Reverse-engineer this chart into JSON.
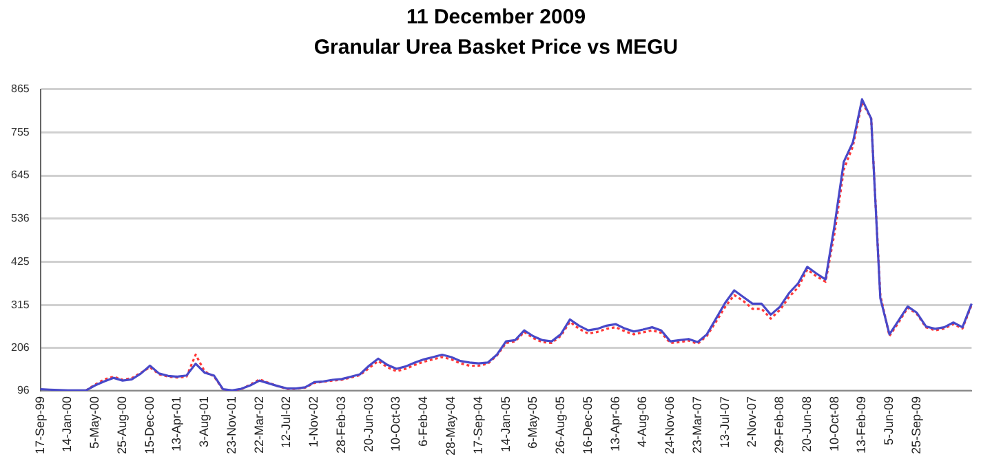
{
  "chart_data": {
    "type": "line",
    "title": "11 December 2009",
    "subtitle": "Granular Urea Basket Price vs MEGU",
    "categories": [
      "17-Sep-99",
      null,
      null,
      "14-Jan-00",
      null,
      null,
      "5-May-00",
      null,
      null,
      "25-Aug-00",
      null,
      null,
      "15-Dec-00",
      null,
      null,
      "13-Apr-01",
      null,
      null,
      "3-Aug-01",
      null,
      null,
      "23-Nov-01",
      null,
      null,
      "22-Mar-02",
      null,
      null,
      "12-Jul-02",
      null,
      null,
      "1-Nov-02",
      null,
      null,
      "28-Feb-03",
      null,
      null,
      "20-Jun-03",
      null,
      null,
      "10-Oct-03",
      null,
      null,
      "6-Feb-04",
      null,
      null,
      "28-May-04",
      null,
      null,
      "17-Sep-04",
      null,
      null,
      "14-Jan-05",
      null,
      null,
      "6-May-05",
      null,
      null,
      "26-Aug-05",
      null,
      null,
      "16-Dec-05",
      null,
      null,
      "13-Apr-06",
      null,
      null,
      "4-Aug-06",
      null,
      null,
      "24-Nov-06",
      null,
      null,
      "23-Mar-07",
      null,
      null,
      "13-Jul-07",
      null,
      null,
      "2-Nov-07",
      null,
      null,
      "29-Feb-08",
      null,
      null,
      "20-Jun-08",
      null,
      null,
      "10-Oct-08",
      null,
      null,
      "13-Feb-09",
      null,
      null,
      "5-Jun-09",
      null,
      null,
      "25-Sep-09",
      null,
      null,
      null,
      null,
      null,
      null
    ],
    "series": [
      {
        "color": "#4848c8",
        "line_style": "solid",
        "values": [
          100,
          99,
          98,
          97,
          97,
          97,
          110,
          120,
          129,
          122,
          125,
          140,
          160,
          140,
          134,
          132,
          135,
          165,
          142,
          135,
          100,
          97,
          101,
          110,
          122,
          115,
          108,
          102,
          102,
          105,
          118,
          120,
          124,
          126,
          132,
          138,
          160,
          178,
          162,
          152,
          158,
          168,
          176,
          182,
          188,
          182,
          172,
          168,
          166,
          168,
          188,
          222,
          225,
          250,
          235,
          225,
          222,
          240,
          278,
          262,
          250,
          254,
          262,
          266,
          255,
          247,
          252,
          258,
          250,
          222,
          225,
          228,
          220,
          240,
          280,
          320,
          352,
          335,
          318,
          318,
          290,
          310,
          345,
          370,
          412,
          395,
          380,
          520,
          680,
          730,
          839,
          790,
          332,
          240,
          275,
          311,
          295,
          260,
          254,
          258,
          270,
          258,
          318
        ]
      },
      {
        "color": "#ff3838",
        "line_style": "dotted",
        "values": [
          null,
          null,
          null,
          null,
          null,
          97,
          112,
          125,
          132,
          124,
          128,
          142,
          156,
          138,
          132,
          130,
          132,
          188,
          145,
          133,
          99,
          96,
          100,
          112,
          125,
          116,
          108,
          101,
          101,
          104,
          116,
          119,
          122,
          124,
          130,
          136,
          154,
          172,
          156,
          146,
          152,
          162,
          170,
          176,
          182,
          176,
          166,
          160,
          160,
          165,
          186,
          218,
          222,
          246,
          230,
          220,
          218,
          236,
          272,
          254,
          242,
          246,
          254,
          258,
          248,
          240,
          245,
          250,
          244,
          218,
          220,
          224,
          216,
          236,
          272,
          310,
          340,
          325,
          305,
          305,
          280,
          302,
          335,
          360,
          405,
          388,
          374,
          500,
          660,
          720,
          832,
          790,
          340,
          236,
          270,
          308,
          292,
          258,
          250,
          255,
          266,
          255,
          315
        ]
      }
    ],
    "ylim": [
      96,
      865
    ],
    "yticks": [
      96,
      206,
      315,
      425,
      536,
      645,
      755,
      865
    ],
    "grid": "y",
    "legend": false,
    "marker": "none"
  }
}
